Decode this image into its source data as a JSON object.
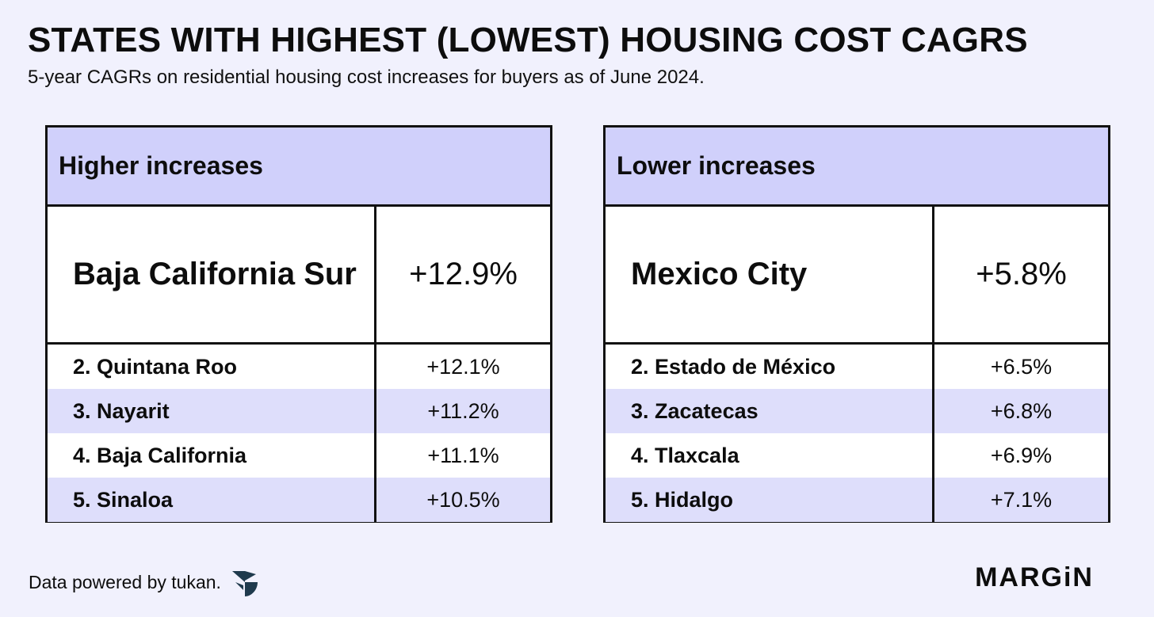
{
  "chart_data": {
    "type": "table",
    "title": "STATES WITH HIGHEST (LOWEST) HOUSING COST CAGRS",
    "subtitle": "5-year CAGRs on residential housing cost increases for buyers as of June 2024.",
    "tables": [
      {
        "header": "Higher increases",
        "top": {
          "name": "Baja California Sur",
          "value": "+12.9%"
        },
        "rows": [
          {
            "name": "2. Quintana Roo",
            "value": "+12.1%"
          },
          {
            "name": "3. Nayarit",
            "value": "+11.2%"
          },
          {
            "name": "4. Baja California",
            "value": "+11.1%"
          },
          {
            "name": "5. Sinaloa",
            "value": "+10.5%"
          }
        ]
      },
      {
        "header": "Lower increases",
        "top": {
          "name": "Mexico City",
          "value": "+5.8%"
        },
        "rows": [
          {
            "name": "2. Estado de México",
            "value": "+6.5%"
          },
          {
            "name": "3. Zacatecas",
            "value": "+6.8%"
          },
          {
            "name": "4. Tlaxcala",
            "value": "+6.9%"
          },
          {
            "name": "5. Hidalgo",
            "value": "+7.1%"
          }
        ]
      }
    ]
  },
  "footer": {
    "credit": "Data powered by tukan.",
    "credit_icon": "tukan-logo-icon",
    "brand": "MARGiN"
  },
  "colors": {
    "background": "#f1f1fd",
    "header_fill": "#d0d0fb",
    "row_shade": "#dedefb",
    "border": "#111111",
    "logo": "#1f3a4d"
  }
}
